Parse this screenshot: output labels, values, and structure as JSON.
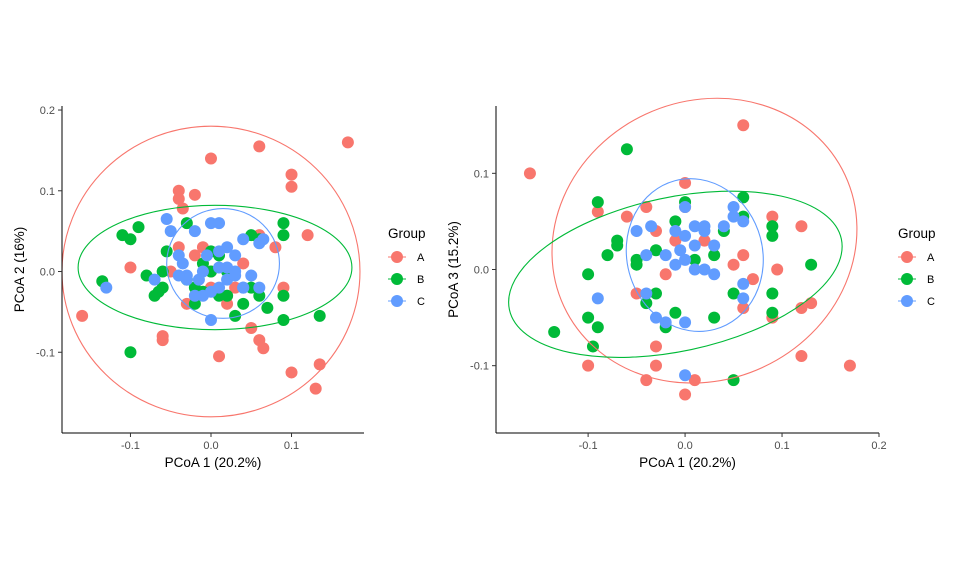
{
  "chart_data": [
    {
      "type": "scatter",
      "xlabel": "PCoA 1 (20.2%)",
      "ylabel": "PCoA 2 (16%)",
      "xlim": [
        -0.185,
        0.19
      ],
      "ylim": [
        -0.2,
        0.205
      ],
      "xticks": [
        -0.1,
        0.0,
        0.1
      ],
      "xtick_labels": [
        "-0.1",
        "0.0",
        "0.1"
      ],
      "yticks": [
        -0.1,
        0.0,
        0.1,
        0.2
      ],
      "ytick_labels": [
        "-0.1",
        "0.0",
        "0.1",
        "0.2"
      ],
      "grid": false,
      "legend": {
        "title": "Group",
        "position": "right",
        "labels": [
          "A",
          "B",
          "C"
        ]
      },
      "series": [
        {
          "name": "A",
          "color": "#F8766D",
          "points": [
            [
              -0.16,
              -0.055
            ],
            [
              -0.1,
              0.005
            ],
            [
              -0.06,
              -0.085
            ],
            [
              -0.06,
              -0.08
            ],
            [
              -0.04,
              0.1
            ],
            [
              -0.04,
              0.09
            ],
            [
              -0.02,
              0.095
            ],
            [
              -0.035,
              0.078
            ],
            [
              -0.01,
              0.03
            ],
            [
              0.0,
              0.14
            ],
            [
              -0.03,
              -0.04
            ],
            [
              0.0,
              0.0
            ],
            [
              0.02,
              -0.04
            ],
            [
              0.01,
              -0.105
            ],
            [
              0.03,
              -0.02
            ],
            [
              0.06,
              0.155
            ],
            [
              0.06,
              -0.085
            ],
            [
              0.065,
              -0.095
            ],
            [
              0.08,
              0.03
            ],
            [
              0.1,
              0.12
            ],
            [
              0.1,
              0.105
            ],
            [
              0.09,
              -0.02
            ],
            [
              0.12,
              0.045
            ],
            [
              0.13,
              -0.145
            ],
            [
              0.135,
              -0.115
            ],
            [
              0.17,
              0.16
            ],
            [
              0.1,
              -0.125
            ],
            [
              0.05,
              -0.07
            ],
            [
              -0.02,
              0.02
            ],
            [
              0.04,
              0.01
            ],
            [
              0.0,
              -0.02
            ],
            [
              -0.04,
              0.03
            ],
            [
              -0.05,
              0.0
            ],
            [
              0.02,
              -0.03
            ],
            [
              0.06,
              0.045
            ]
          ]
        },
        {
          "name": "B",
          "color": "#00BA38",
          "points": [
            [
              -0.135,
              -0.012
            ],
            [
              -0.11,
              0.045
            ],
            [
              -0.1,
              0.04
            ],
            [
              -0.09,
              0.055
            ],
            [
              -0.08,
              -0.005
            ],
            [
              -0.07,
              -0.03
            ],
            [
              -0.065,
              -0.025
            ],
            [
              -0.06,
              -0.02
            ],
            [
              -0.06,
              0.0
            ],
            [
              -0.055,
              0.025
            ],
            [
              -0.03,
              0.06
            ],
            [
              -0.03,
              -0.01
            ],
            [
              -0.02,
              -0.02
            ],
            [
              -0.01,
              -0.025
            ],
            [
              0.0,
              0.025
            ],
            [
              0.01,
              0.02
            ],
            [
              0.02,
              -0.03
            ],
            [
              0.03,
              -0.055
            ],
            [
              0.05,
              0.045
            ],
            [
              0.05,
              -0.02
            ],
            [
              0.06,
              -0.03
            ],
            [
              0.06,
              0.04
            ],
            [
              0.07,
              -0.045
            ],
            [
              0.09,
              0.06
            ],
            [
              0.09,
              0.045
            ],
            [
              0.09,
              -0.03
            ],
            [
              0.09,
              -0.06
            ],
            [
              0.135,
              -0.055
            ],
            [
              -0.1,
              -0.1
            ],
            [
              0.0,
              0.0
            ],
            [
              0.02,
              0.0
            ],
            [
              -0.01,
              0.01
            ],
            [
              0.04,
              -0.04
            ],
            [
              -0.02,
              -0.04
            ],
            [
              0.01,
              -0.03
            ]
          ]
        },
        {
          "name": "C",
          "color": "#619CFF",
          "points": [
            [
              -0.13,
              -0.02
            ],
            [
              -0.07,
              -0.01
            ],
            [
              -0.055,
              0.065
            ],
            [
              -0.05,
              0.05
            ],
            [
              -0.04,
              0.02
            ],
            [
              -0.035,
              0.01
            ],
            [
              -0.03,
              -0.005
            ],
            [
              -0.03,
              -0.01
            ],
            [
              -0.02,
              0.05
            ],
            [
              -0.01,
              0.0
            ],
            [
              -0.01,
              -0.03
            ],
            [
              0.0,
              0.06
            ],
            [
              0.0,
              -0.06
            ],
            [
              0.01,
              0.06
            ],
            [
              0.01,
              0.025
            ],
            [
              0.02,
              0.03
            ],
            [
              0.02,
              -0.01
            ],
            [
              0.02,
              0.005
            ],
            [
              0.03,
              0.0
            ],
            [
              0.03,
              -0.005
            ],
            [
              0.04,
              0.04
            ],
            [
              0.04,
              -0.02
            ],
            [
              0.05,
              -0.005
            ],
            [
              0.06,
              0.035
            ],
            [
              0.065,
              0.04
            ],
            [
              0.06,
              -0.02
            ],
            [
              0.04,
              -0.02
            ],
            [
              -0.02,
              -0.03
            ],
            [
              0.0,
              -0.025
            ],
            [
              0.01,
              0.005
            ],
            [
              -0.04,
              -0.005
            ],
            [
              0.01,
              -0.02
            ],
            [
              -0.005,
              0.02
            ],
            [
              0.03,
              0.02
            ],
            [
              -0.015,
              -0.01
            ]
          ]
        }
      ],
      "ellipses": [
        {
          "group": "A",
          "color": "#F8766D",
          "center": [
            0.0,
            0.0
          ],
          "rx": 0.185,
          "ry": 0.18
        },
        {
          "group": "B",
          "color": "#00BA38",
          "center": [
            0.005,
            0.005
          ],
          "rx": 0.17,
          "ry": 0.077
        },
        {
          "group": "C",
          "color": "#619CFF",
          "center": [
            0.015,
            0.01
          ],
          "rx": 0.07,
          "ry": 0.068
        }
      ]
    },
    {
      "type": "scatter",
      "xlabel": "PCoA 1 (20.2%)",
      "ylabel": "PCoA 3 (15.2%)",
      "xlim": [
        -0.195,
        0.2
      ],
      "ylim": [
        -0.17,
        0.17
      ],
      "xticks": [
        -0.1,
        0.0,
        0.1,
        0.2
      ],
      "xtick_labels": [
        "-0.1",
        "0.0",
        "0.1",
        "0.2"
      ],
      "yticks": [
        -0.1,
        0.0,
        0.1
      ],
      "ytick_labels": [
        "-0.1",
        "0.0",
        "0.1"
      ],
      "grid": false,
      "legend": {
        "title": "Group",
        "position": "right",
        "labels": [
          "A",
          "B",
          "C"
        ]
      },
      "series": [
        {
          "name": "A",
          "color": "#F8766D",
          "points": [
            [
              -0.16,
              0.1
            ],
            [
              -0.09,
              0.06
            ],
            [
              -0.06,
              0.055
            ],
            [
              -0.04,
              0.065
            ],
            [
              -0.03,
              0.04
            ],
            [
              -0.01,
              0.03
            ],
            [
              0.0,
              0.09
            ],
            [
              0.0,
              0.065
            ],
            [
              0.05,
              0.005
            ],
            [
              0.06,
              0.015
            ],
            [
              0.06,
              -0.04
            ],
            [
              0.06,
              0.15
            ],
            [
              0.07,
              -0.01
            ],
            [
              0.09,
              0.055
            ],
            [
              0.09,
              -0.05
            ],
            [
              0.095,
              0.0
            ],
            [
              0.12,
              0.045
            ],
            [
              0.12,
              -0.04
            ],
            [
              0.13,
              -0.035
            ],
            [
              0.12,
              -0.09
            ],
            [
              0.17,
              -0.1
            ],
            [
              -0.1,
              -0.1
            ],
            [
              -0.05,
              -0.025
            ],
            [
              -0.03,
              -0.08
            ],
            [
              -0.03,
              -0.1
            ],
            [
              0.01,
              -0.115
            ],
            [
              0.0,
              -0.13
            ],
            [
              -0.04,
              -0.115
            ],
            [
              -0.02,
              -0.005
            ],
            [
              0.02,
              0.03
            ]
          ]
        },
        {
          "name": "B",
          "color": "#00BA38",
          "points": [
            [
              -0.135,
              -0.065
            ],
            [
              -0.1,
              -0.005
            ],
            [
              -0.1,
              -0.05
            ],
            [
              -0.095,
              -0.08
            ],
            [
              -0.09,
              0.07
            ],
            [
              -0.09,
              -0.06
            ],
            [
              -0.08,
              0.015
            ],
            [
              -0.07,
              0.025
            ],
            [
              -0.07,
              0.03
            ],
            [
              -0.06,
              0.125
            ],
            [
              -0.05,
              0.01
            ],
            [
              -0.05,
              0.005
            ],
            [
              -0.04,
              -0.035
            ],
            [
              -0.03,
              0.02
            ],
            [
              -0.03,
              -0.025
            ],
            [
              -0.02,
              -0.06
            ],
            [
              -0.01,
              -0.045
            ],
            [
              0.0,
              0.07
            ],
            [
              0.01,
              0.01
            ],
            [
              0.03,
              0.015
            ],
            [
              0.04,
              0.04
            ],
            [
              0.05,
              -0.025
            ],
            [
              0.05,
              -0.115
            ],
            [
              0.06,
              0.075
            ],
            [
              0.06,
              0.055
            ],
            [
              0.09,
              0.045
            ],
            [
              0.09,
              0.035
            ],
            [
              0.09,
              -0.025
            ],
            [
              0.09,
              -0.045
            ],
            [
              0.13,
              0.005
            ],
            [
              0.03,
              -0.05
            ],
            [
              -0.01,
              0.05
            ]
          ]
        },
        {
          "name": "C",
          "color": "#619CFF",
          "points": [
            [
              -0.09,
              -0.03
            ],
            [
              -0.05,
              0.04
            ],
            [
              -0.04,
              0.015
            ],
            [
              -0.035,
              0.045
            ],
            [
              -0.03,
              -0.05
            ],
            [
              -0.02,
              0.015
            ],
            [
              -0.02,
              -0.055
            ],
            [
              -0.01,
              0.04
            ],
            [
              -0.005,
              0.02
            ],
            [
              0.0,
              0.01
            ],
            [
              0.0,
              0.065
            ],
            [
              0.0,
              -0.055
            ],
            [
              0.01,
              0.045
            ],
            [
              0.01,
              0.025
            ],
            [
              0.01,
              0.0
            ],
            [
              0.02,
              0.04
            ],
            [
              0.02,
              0.045
            ],
            [
              0.03,
              0.025
            ],
            [
              0.03,
              -0.005
            ],
            [
              0.04,
              0.045
            ],
            [
              0.05,
              0.065
            ],
            [
              0.05,
              0.055
            ],
            [
              0.06,
              0.05
            ],
            [
              0.06,
              -0.015
            ],
            [
              0.06,
              -0.03
            ],
            [
              0.0,
              -0.11
            ],
            [
              -0.04,
              -0.025
            ],
            [
              0.02,
              0.0
            ],
            [
              -0.01,
              0.005
            ],
            [
              0.0,
              0.035
            ]
          ]
        }
      ],
      "ellipses": [
        {
          "group": "A",
          "color": "#F8766D",
          "center": [
            0.02,
            0.03
          ],
          "rx": 0.16,
          "ry": 0.145,
          "rotate": 25
        },
        {
          "group": "B",
          "color": "#00BA38",
          "center": [
            -0.01,
            -0.005
          ],
          "rx": 0.175,
          "ry": 0.08,
          "rotate": 12
        },
        {
          "group": "C",
          "color": "#619CFF",
          "center": [
            0.01,
            0.015
          ],
          "rx": 0.07,
          "ry": 0.08,
          "rotate": 15
        }
      ]
    }
  ]
}
